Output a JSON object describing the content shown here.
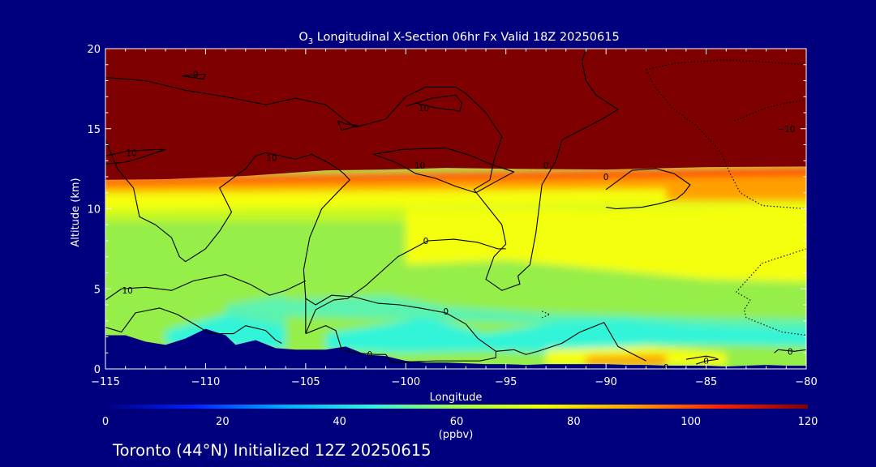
{
  "background_color": "#00007f",
  "chart_data": {
    "type": "heatmap",
    "title_prefix": "O",
    "title_subscript": "3",
    "title_rest": " Longitudinal X-Section 06hr  Fx Valid 18Z 20250615",
    "xlabel": "Longitude",
    "ylabel": "Altitude (km)",
    "xlim": [
      -115,
      -80
    ],
    "ylim": [
      0,
      20
    ],
    "x_ticks": [
      -115,
      -110,
      -105,
      -100,
      -95,
      -90,
      -85,
      -80
    ],
    "x_tick_labels": [
      "−115",
      "−110",
      "−105",
      "−100",
      "−95",
      "−90",
      "−85",
      "−80"
    ],
    "y_ticks": [
      0,
      5,
      10,
      15,
      20
    ],
    "y_tick_labels": [
      "0",
      "5",
      "10",
      "15",
      "20"
    ],
    "colorbar": {
      "ticks": [
        0,
        20,
        40,
        60,
        80,
        100,
        120
      ],
      "tick_labels": [
        "0",
        "20",
        "40",
        "60",
        "80",
        "100",
        "120"
      ],
      "units": "(ppbv)",
      "colors": [
        "#00007f",
        "#0020ff",
        "#00a8ff",
        "#30f0e0",
        "#a0ff50",
        "#f0ff00",
        "#ffa000",
        "#ff2000",
        "#800000"
      ]
    },
    "field_colors": {
      "stratosphere": "#7f0000",
      "tropopause_red": "#ff3000",
      "orange": "#ffa000",
      "yellow": "#f4ff10",
      "yellow_green": "#c4f820",
      "green": "#96ee48",
      "cyan_green": "#5cf2b0",
      "cyan": "#30f4d8",
      "terrain": "#00007f"
    },
    "terrain_profile": {
      "x": [
        -115,
        -114,
        -113,
        -112,
        -111,
        -110,
        -109,
        -108.5,
        -107.5,
        -106.5,
        -105.5,
        -104,
        -103,
        -102,
        -101,
        -100,
        -99,
        -98,
        -97,
        -96,
        -95,
        -94,
        -93,
        -92,
        -91,
        -90,
        -89,
        -88,
        -87,
        -86,
        -85,
        -84,
        -83,
        -82,
        -81,
        -80
      ],
      "y": [
        2.1,
        2.1,
        1.7,
        1.5,
        1.9,
        2.5,
        2.1,
        1.5,
        1.8,
        1.3,
        1.2,
        1.2,
        1.4,
        0.9,
        0.8,
        0.5,
        0.4,
        0.4,
        0.35,
        0.3,
        0.3,
        0.25,
        0.3,
        0.3,
        0.3,
        0.3,
        0.25,
        0.25,
        0.2,
        0.2,
        0.2,
        0.15,
        0.2,
        0.25,
        0.2,
        0.2
      ]
    },
    "contour_labels": [
      {
        "text": "0",
        "x": -110.5,
        "y": 18.4
      },
      {
        "text": "10",
        "x": -99.1,
        "y": 16.3
      },
      {
        "text": "10",
        "x": -113.7,
        "y": 13.5
      },
      {
        "text": "10",
        "x": -106.7,
        "y": 13.2
      },
      {
        "text": "10",
        "x": -99.3,
        "y": 12.7
      },
      {
        "text": "0",
        "x": -93.0,
        "y": 12.7
      },
      {
        "text": "0",
        "x": -90.0,
        "y": 12.0
      },
      {
        "text": "0",
        "x": -99.0,
        "y": 8.0
      },
      {
        "text": "10",
        "x": -113.9,
        "y": 4.9
      },
      {
        "text": "0",
        "x": -98.0,
        "y": 3.6
      },
      {
        "text": "0",
        "x": -101.8,
        "y": 0.9
      },
      {
        "text": "0",
        "x": -85.0,
        "y": 0.5
      },
      {
        "text": "0",
        "x": -87.0,
        "y": 0.1
      },
      {
        "text": "0",
        "x": -80.8,
        "y": 1.1
      },
      {
        "text": "−10",
        "x": -81.0,
        "y": 15.0
      }
    ],
    "contour_lines": [
      {
        "style": "solid",
        "points": [
          [
            -115,
            18.2
          ],
          [
            -113,
            18.0
          ],
          [
            -111,
            17.4
          ],
          [
            -109,
            17.0
          ],
          [
            -107,
            16.5
          ],
          [
            -105.5,
            16.9
          ],
          [
            -104,
            16.5
          ],
          [
            -103,
            15.5
          ],
          [
            -102.5,
            15.1
          ],
          [
            -101,
            15.6
          ],
          [
            -100,
            17.0
          ],
          [
            -99,
            17.6
          ],
          [
            -97.5,
            17.6
          ],
          [
            -97,
            17.2
          ],
          [
            -96,
            16.0
          ],
          [
            -95.2,
            14.5
          ],
          [
            -95.6,
            13.0
          ],
          [
            -95.8,
            11.8
          ],
          [
            -96.6,
            11.2
          ],
          [
            -95.2,
            9.0
          ],
          [
            -95,
            7.8
          ],
          [
            -95.6,
            7.0
          ],
          [
            -96,
            5.6
          ],
          [
            -95.2,
            4.9
          ],
          [
            -94.3,
            5.3
          ],
          [
            -94.4,
            5.8
          ],
          [
            -93.8,
            6.5
          ],
          [
            -93.5,
            8.5
          ],
          [
            -93.2,
            11.5
          ],
          [
            -92.5,
            13.0
          ],
          [
            -92.2,
            14.3
          ],
          [
            -90.2,
            15.6
          ],
          [
            -89.4,
            16.2
          ],
          [
            -90.5,
            17.1
          ],
          [
            -91.0,
            18.0
          ],
          [
            -91.2,
            19.2
          ],
          [
            -91.0,
            20.0
          ]
        ]
      },
      {
        "style": "solid",
        "points": [
          [
            -115,
            14.3
          ],
          [
            -114.4,
            12.5
          ],
          [
            -113.6,
            11.3
          ],
          [
            -113.3,
            9.5
          ],
          [
            -112.5,
            9.0
          ],
          [
            -111.7,
            8.2
          ],
          [
            -111.3,
            7.0
          ],
          [
            -111.0,
            6.7
          ],
          [
            -110.0,
            7.5
          ],
          [
            -109.3,
            8.6
          ],
          [
            -108.7,
            9.8
          ],
          [
            -109.3,
            11.3
          ],
          [
            -108.0,
            12.5
          ],
          [
            -107.5,
            13.3
          ],
          [
            -107.0,
            13.5
          ],
          [
            -105.5,
            13.1
          ],
          [
            -104.7,
            13.4
          ],
          [
            -103.9,
            12.9
          ],
          [
            -103.4,
            12.5
          ],
          [
            -103.1,
            12.2
          ],
          [
            -102.8,
            11.8
          ],
          [
            -103.2,
            11.3
          ],
          [
            -104.2,
            10.0
          ],
          [
            -104.8,
            8.2
          ],
          [
            -105.1,
            6.2
          ],
          [
            -105.0,
            4.4
          ],
          [
            -105.0,
            2.2
          ]
        ]
      },
      {
        "style": "solid",
        "points": [
          [
            -115,
            13.3
          ],
          [
            -113.9,
            13.6
          ],
          [
            -112.5,
            13.7
          ],
          [
            -112.0,
            13.7
          ],
          [
            -113.2,
            13.2
          ],
          [
            -114.0,
            12.9
          ],
          [
            -115,
            12.8
          ]
        ]
      },
      {
        "style": "solid",
        "points": [
          [
            -111.2,
            18.3
          ],
          [
            -110.1,
            18.1
          ],
          [
            -110.0,
            18.4
          ],
          [
            -111.2,
            18.3
          ]
        ]
      },
      {
        "style": "solid",
        "points": [
          [
            -103.4,
            15.5
          ],
          [
            -103.0,
            15.3
          ],
          [
            -102.4,
            15.2
          ],
          [
            -103.2,
            14.9
          ],
          [
            -103.4,
            15.5
          ]
        ]
      },
      {
        "style": "solid",
        "points": [
          [
            -100.0,
            16.4
          ],
          [
            -98.7,
            16.9
          ],
          [
            -97.5,
            17.1
          ],
          [
            -97.2,
            16.6
          ],
          [
            -97.3,
            16.1
          ],
          [
            -98.5,
            16.3
          ],
          [
            -99.5,
            16.6
          ],
          [
            -100.0,
            16.4
          ]
        ]
      },
      {
        "style": "solid",
        "points": [
          [
            -101.6,
            13.4
          ],
          [
            -100.2,
            13.7
          ],
          [
            -98.0,
            13.8
          ],
          [
            -96.7,
            13.3
          ],
          [
            -95.8,
            12.8
          ],
          [
            -94.6,
            12.3
          ],
          [
            -95.5,
            11.7
          ],
          [
            -96.5,
            11.0
          ],
          [
            -97.5,
            11.4
          ],
          [
            -98.5,
            11.9
          ],
          [
            -99.5,
            12.2
          ],
          [
            -100.5,
            12.9
          ],
          [
            -101.6,
            13.4
          ]
        ]
      },
      {
        "style": "solid",
        "points": [
          [
            -115,
            4.3
          ],
          [
            -114.2,
            5.0
          ],
          [
            -113.0,
            5.1
          ],
          [
            -111.7,
            4.9
          ],
          [
            -110.6,
            5.5
          ],
          [
            -109.0,
            5.9
          ],
          [
            -107.8,
            5.3
          ],
          [
            -106.8,
            4.6
          ],
          [
            -106.0,
            4.9
          ],
          [
            -105.0,
            5.5
          ]
        ]
      },
      {
        "style": "solid",
        "points": [
          [
            -105.0,
            2.2
          ],
          [
            -104.0,
            2.7
          ],
          [
            -103.5,
            2.4
          ],
          [
            -103.2,
            1.2
          ],
          [
            -102.5,
            1.0
          ],
          [
            -101.5,
            0.9
          ],
          [
            -101.0,
            0.9
          ],
          [
            -100.7,
            0.4
          ],
          [
            -98.5,
            0.5
          ],
          [
            -96.3,
            0.5
          ],
          [
            -95.5,
            0.7
          ],
          [
            -95.5,
            1.1
          ],
          [
            -96.4,
            1.9
          ],
          [
            -97.0,
            2.8
          ],
          [
            -98.0,
            3.5
          ],
          [
            -99.3,
            3.8
          ],
          [
            -100.3,
            4.0
          ],
          [
            -101.4,
            4.1
          ],
          [
            -102.6,
            4.5
          ],
          [
            -103.7,
            4.6
          ],
          [
            -104.5,
            4.0
          ],
          [
            -105.0,
            4.4
          ]
        ]
      },
      {
        "style": "solid",
        "points": [
          [
            -115,
            2.6
          ],
          [
            -114.2,
            2.3
          ],
          [
            -113.5,
            3.5
          ],
          [
            -112.3,
            3.8
          ],
          [
            -111.4,
            3.4
          ],
          [
            -110.3,
            2.6
          ],
          [
            -109.8,
            2.2
          ],
          [
            -108.6,
            2.2
          ],
          [
            -108.0,
            2.7
          ],
          [
            -107.0,
            2.4
          ],
          [
            -106.5,
            1.8
          ],
          [
            -106.2,
            1.6
          ]
        ]
      },
      {
        "style": "solid",
        "points": [
          [
            -105.0,
            2.2
          ],
          [
            -104.5,
            3.7
          ],
          [
            -103.6,
            4.3
          ],
          [
            -102.9,
            4.4
          ],
          [
            -102.0,
            5.2
          ],
          [
            -101.2,
            6.1
          ],
          [
            -100.4,
            7.0
          ],
          [
            -98.9,
            8.0
          ],
          [
            -97.6,
            8.1
          ],
          [
            -96.4,
            7.9
          ],
          [
            -95.4,
            7.5
          ],
          [
            -95.0,
            7.5
          ]
        ]
      },
      {
        "style": "solid",
        "points": [
          [
            -90.0,
            11.2
          ],
          [
            -88.7,
            12.4
          ],
          [
            -87.5,
            12.5
          ],
          [
            -86.6,
            12.2
          ],
          [
            -85.8,
            11.5
          ],
          [
            -86.1,
            11.0
          ],
          [
            -86.5,
            10.6
          ],
          [
            -87.4,
            10.3
          ],
          [
            -88.2,
            10.1
          ],
          [
            -89.5,
            10.0
          ],
          [
            -90.0,
            10.1
          ]
        ]
      },
      {
        "style": "solid",
        "points": [
          [
            -88.0,
            0.5
          ],
          [
            -89.4,
            1.4
          ],
          [
            -90.1,
            2.9
          ],
          [
            -91.3,
            2.3
          ],
          [
            -92.2,
            1.6
          ],
          [
            -93.4,
            1.1
          ],
          [
            -94.0,
            0.9
          ],
          [
            -94.6,
            1.2
          ],
          [
            -95.5,
            1.1
          ]
        ]
      },
      {
        "style": "solid",
        "points": [
          [
            -86.0,
            0.6
          ],
          [
            -85.0,
            0.8
          ],
          [
            -84.6,
            0.7
          ],
          [
            -84.4,
            0.6
          ],
          [
            -85.0,
            0.5
          ],
          [
            -85.5,
            0.3
          ]
        ]
      },
      {
        "style": "solid",
        "points": [
          [
            -81.6,
            1.0
          ],
          [
            -81.4,
            1.2
          ],
          [
            -80.6,
            1.1
          ],
          [
            -80.0,
            1.2
          ]
        ]
      },
      {
        "style": "dotted",
        "points": [
          [
            -88.0,
            18.7
          ],
          [
            -86.5,
            19.1
          ],
          [
            -84.0,
            19.3
          ],
          [
            -82.5,
            19.2
          ],
          [
            -80.0,
            19.0
          ]
        ]
      },
      {
        "style": "dotted",
        "points": [
          [
            -88.0,
            18.7
          ],
          [
            -87.6,
            17.7
          ],
          [
            -86.7,
            16.3
          ],
          [
            -85.5,
            15.2
          ],
          [
            -84.3,
            13.6
          ],
          [
            -83.8,
            12.2
          ],
          [
            -83.3,
            11.0
          ],
          [
            -82.2,
            10.2
          ],
          [
            -80.0,
            10.0
          ]
        ]
      },
      {
        "style": "dotted",
        "points": [
          [
            -83.6,
            15.5
          ],
          [
            -82.0,
            16.3
          ],
          [
            -81.0,
            16.6
          ],
          [
            -80.0,
            16.8
          ]
        ]
      },
      {
        "style": "dotted",
        "points": [
          [
            -80.0,
            7.5
          ],
          [
            -82.2,
            6.6
          ],
          [
            -83.5,
            4.8
          ],
          [
            -82.8,
            4.3
          ],
          [
            -83.1,
            3.7
          ],
          [
            -83.0,
            3.2
          ],
          [
            -81.2,
            2.3
          ],
          [
            -80.0,
            2.1
          ]
        ]
      },
      {
        "style": "dotted",
        "points": [
          [
            -93.2,
            3.6
          ],
          [
            -92.8,
            3.4
          ],
          [
            -93.2,
            3.2
          ]
        ]
      }
    ]
  },
  "footer": {
    "location_text": "Toronto (44°N) Initialized 12Z 20250615"
  }
}
